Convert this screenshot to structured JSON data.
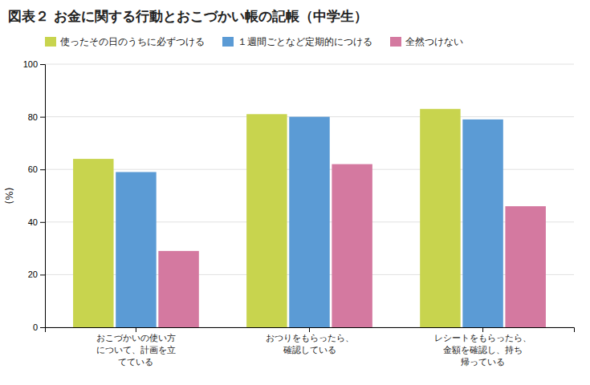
{
  "chart_data": {
    "type": "bar",
    "title": "図表２ お金に関する行動とおこづかい帳の記帳（中学生）",
    "ylabel": "(%)",
    "categories": [
      "おこづかいの使い方\nについて、計画を立\nてている",
      "おつりをもらったら、\n確認している",
      "レシートをもらったら、\n金額を確認し、持ち\n帰っている"
    ],
    "series": [
      {
        "name": "使ったその日のうちに必ずつける",
        "color": "#c8d44e",
        "values": [
          64,
          81,
          83
        ]
      },
      {
        "name": "１週間ごとなど定期的につける",
        "color": "#5b9bd5",
        "values": [
          59,
          80,
          79
        ]
      },
      {
        "name": "全然つけない",
        "color": "#d479a0",
        "values": [
          29,
          62,
          46
        ]
      }
    ],
    "ylim": [
      0,
      100
    ],
    "yticks": [
      0,
      20,
      40,
      60,
      80,
      100
    ],
    "grid": true,
    "legend": "upper left"
  }
}
